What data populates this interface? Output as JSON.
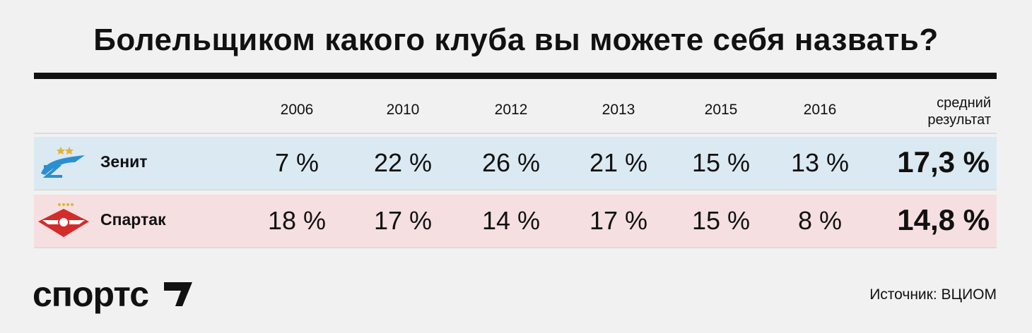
{
  "title": "Болельщиком какого клуба вы можете себя назвать?",
  "table": {
    "header": {
      "years": [
        "2006",
        "2010",
        "2012",
        "2013",
        "2015",
        "2016"
      ],
      "average": "средний результат"
    },
    "rows": [
      {
        "team": "Зенит",
        "cells": [
          "7 %",
          "22 %",
          "26 %",
          "21 %",
          "15 %",
          "13 %"
        ],
        "average": "17,3 %"
      },
      {
        "team": "Спартак",
        "cells": [
          "18 %",
          "17 %",
          "14 %",
          "17 %",
          "15 %",
          "8 %"
        ],
        "average": "14,8 %"
      }
    ]
  },
  "brand": "спортс",
  "source": "Источник: ВЦИОМ"
}
